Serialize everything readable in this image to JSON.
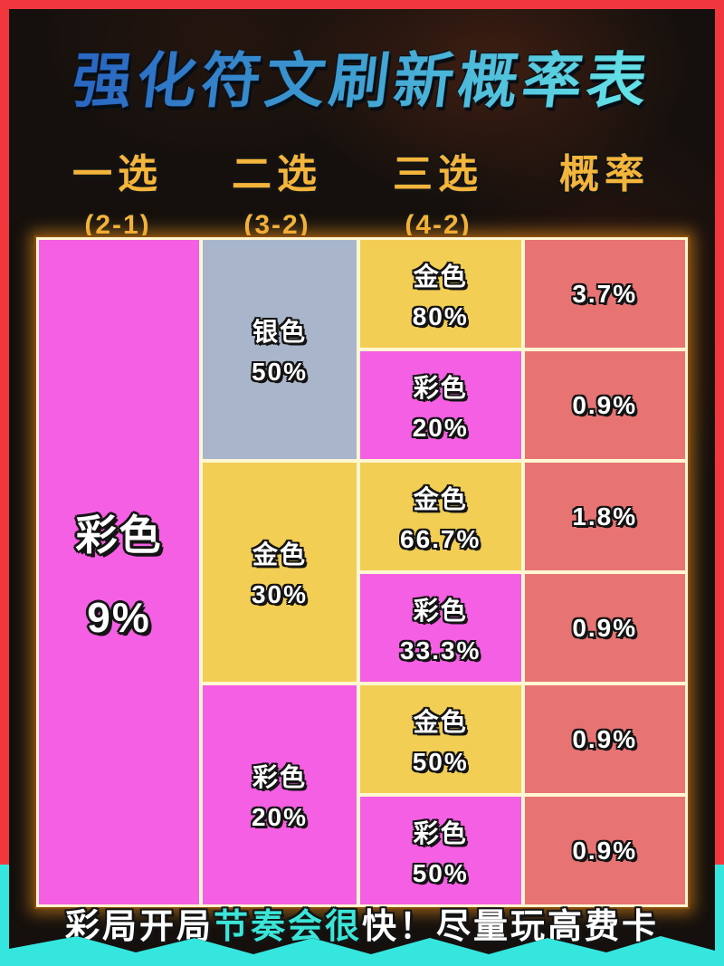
{
  "title": "强化符文刷新概率表",
  "header": {
    "cols": [
      {
        "label": "一选",
        "sub": "(2-1)"
      },
      {
        "label": "二选",
        "sub": "(3-2)"
      },
      {
        "label": "三选",
        "sub": "(4-2)"
      },
      {
        "label": "概率",
        "sub": ""
      }
    ]
  },
  "table": {
    "first": {
      "name": "彩色",
      "pct": "9%",
      "tier": "prismatic"
    },
    "second": [
      {
        "name": "银色",
        "pct": "50%",
        "tier": "silver"
      },
      {
        "name": "金色",
        "pct": "30%",
        "tier": "gold"
      },
      {
        "name": "彩色",
        "pct": "20%",
        "tier": "prismatic"
      }
    ],
    "third": [
      {
        "name": "金色",
        "pct": "80%",
        "tier": "gold"
      },
      {
        "name": "彩色",
        "pct": "20%",
        "tier": "prismatic"
      },
      {
        "name": "金色",
        "pct": "66.7%",
        "tier": "gold"
      },
      {
        "name": "彩色",
        "pct": "33.3%",
        "tier": "prismatic"
      },
      {
        "name": "金色",
        "pct": "50%",
        "tier": "gold"
      },
      {
        "name": "彩色",
        "pct": "50%",
        "tier": "prismatic"
      }
    ],
    "prob": [
      "3.7%",
      "0.9%",
      "1.8%",
      "0.9%",
      "0.9%",
      "0.9%"
    ]
  },
  "footer": {
    "part1": "彩局开局",
    "part2": "节奏会很",
    "part3": "快！尽量玩高费卡"
  },
  "chart_data": {
    "type": "table",
    "title": "强化符文刷新概率表",
    "columns": [
      "一选 (2-1)",
      "二选 (3-2)",
      "三选 (4-2)",
      "概率"
    ],
    "rows": [
      [
        "彩色 9%",
        "银色 50%",
        "金色 80%",
        "3.7%"
      ],
      [
        "彩色 9%",
        "银色 50%",
        "彩色 20%",
        "0.9%"
      ],
      [
        "彩色 9%",
        "金色 30%",
        "金色 66.7%",
        "1.8%"
      ],
      [
        "彩色 9%",
        "金色 30%",
        "彩色 33.3%",
        "0.9%"
      ],
      [
        "彩色 9%",
        "彩色 20%",
        "金色 50%",
        "0.9%"
      ],
      [
        "彩色 9%",
        "彩色 20%",
        "彩色 50%",
        "0.9%"
      ]
    ],
    "footnote": "彩局开局节奏会很快！尽量玩高费卡",
    "tier_colors": {
      "prismatic": "#F55FE3",
      "gold": "#F2CE55",
      "silver": "#A9B5CA",
      "probability": "#E87373"
    }
  },
  "colors": {
    "frame_red": "#F2363E",
    "background_black": "#15100d",
    "cell_pink": "#F55FE3",
    "cell_gold": "#F2CE55",
    "cell_silver": "#A9B5CA",
    "cell_red": "#E87373",
    "grid_line_cream": "#FFF6D2",
    "header_gold": "#F4B53C",
    "footer_cyan": "#3BE6D8",
    "bottom_strip_cyan": "#35E6DF",
    "title_gradient_start": "#2a68c2",
    "title_gradient_end": "#63e0e6"
  }
}
